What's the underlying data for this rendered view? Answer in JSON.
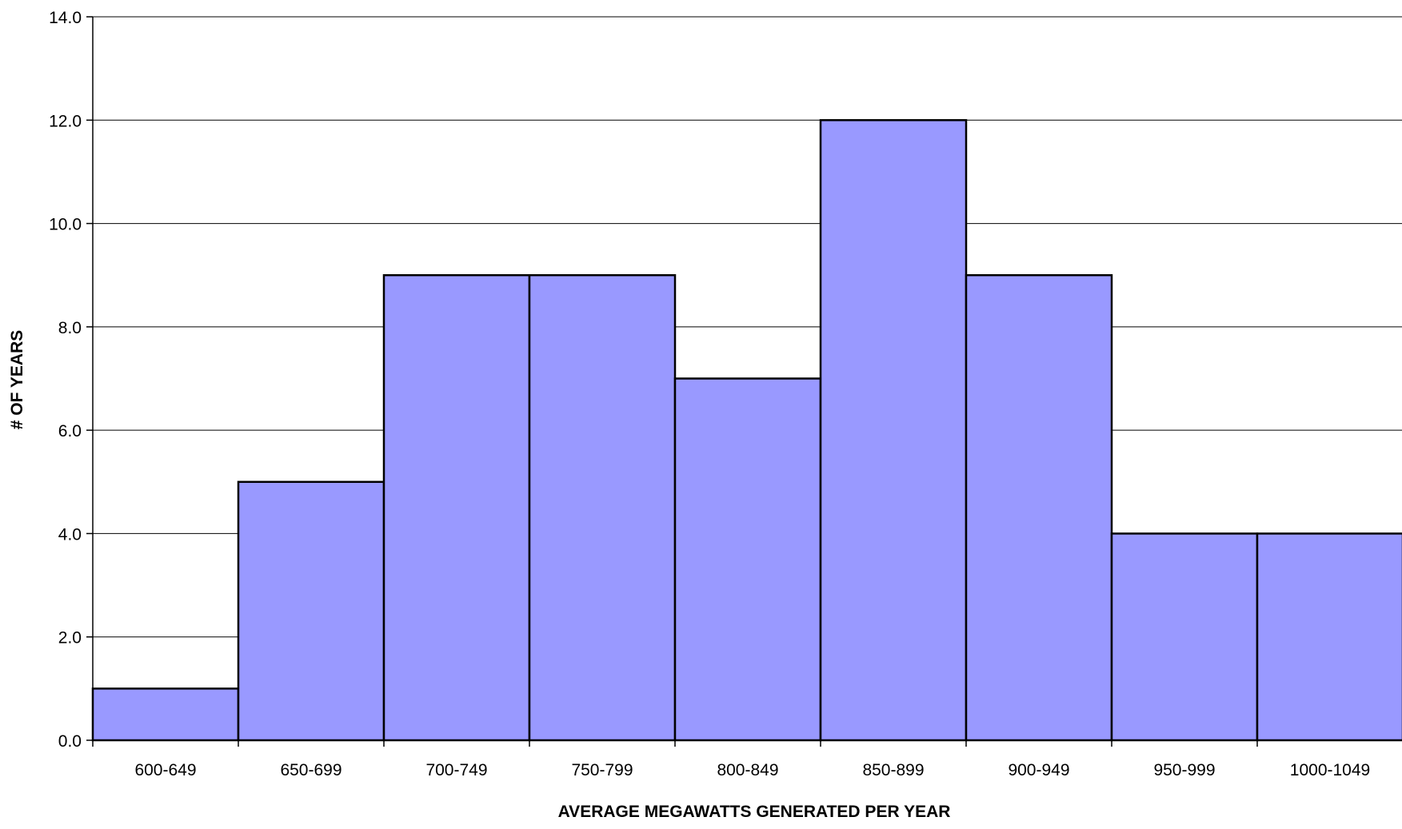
{
  "chart_data": {
    "type": "bar",
    "categories": [
      "600-649",
      "650-699",
      "700-749",
      "750-799",
      "800-849",
      "850-899",
      "900-949",
      "950-999",
      "1000-1049"
    ],
    "values": [
      1,
      5,
      9,
      9,
      7,
      12,
      9,
      4,
      4
    ],
    "xlabel": "AVERAGE MEGAWATTS GENERATED PER YEAR",
    "ylabel": "# OF YEARS",
    "ylim": [
      0,
      14
    ],
    "yticks": [
      "0.0",
      "2.0",
      "4.0",
      "6.0",
      "8.0",
      "10.0",
      "12.0",
      "14.0"
    ],
    "grid": true,
    "legend": "none",
    "colors": {
      "bar_fill": "#9999ff",
      "bar_stroke": "#000000"
    }
  }
}
